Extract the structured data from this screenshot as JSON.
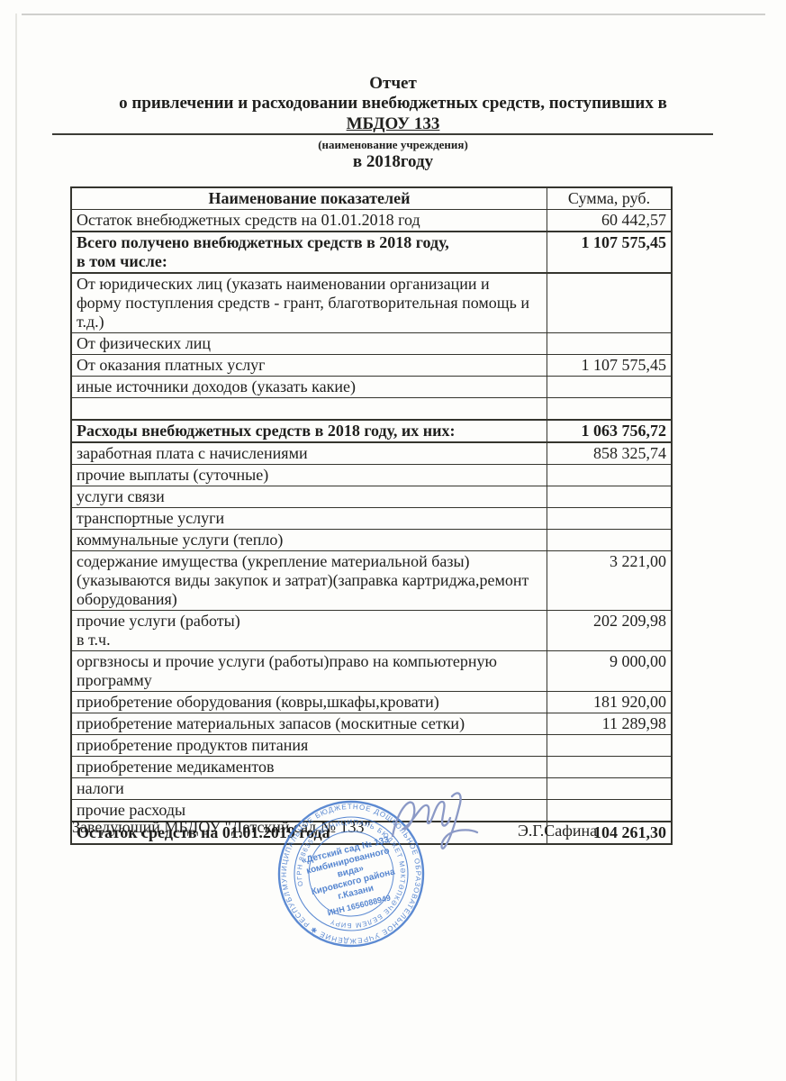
{
  "document": {
    "title_line1": "Отчет",
    "title_line2": "о привлечении и расходовании внебюджетных средств, поступивших в",
    "institution": "МБДОУ 133",
    "institution_caption": "(наименование учреждения)",
    "year_line": "в 2018году"
  },
  "table": {
    "columns": [
      "Наименование показателей",
      "Сумма, руб."
    ],
    "rows": [
      {
        "label": "Остаток внебюджетных средств на 01.01.2018 год",
        "value": "60 442,57"
      },
      {
        "label": "Всего получено внебюджетных средств в 2018 году,\nв том числе:",
        "value": "1 107 575,45",
        "b": true,
        "vb": true
      },
      {
        "label": "От юридических лиц (указать наименовании организации и\nформу поступления средств - грант, благотворительная помощь и т.д.)",
        "value": "",
        "pt": true
      },
      {
        "label": "От физических лиц",
        "value": ""
      },
      {
        "label": "От оказания платных услуг",
        "value": "1 107 575,45"
      },
      {
        "label": "иные источники доходов (указать какие)",
        "value": "",
        "ind": true
      },
      {
        "label": "",
        "value": "",
        "empty": true
      },
      {
        "label": "Расходы внебюджетных средств в 2018 году, их них:",
        "value": "1 063 756,72",
        "b": true
      },
      {
        "label": "заработная плата с начислениями",
        "value": "858 325,74"
      },
      {
        "label": "прочие выплаты (суточные)",
        "value": ""
      },
      {
        "label": "услуги связи",
        "value": ""
      },
      {
        "label": "транспортные услуги",
        "value": ""
      },
      {
        "label": "коммунальные услуги (тепло)",
        "value": ""
      },
      {
        "label": "содержание имущества (укрепление материальной базы)\n(указываются виды закупок и затрат)(заправка картриджа,ремонт\nоборудования)",
        "value": "3 221,00",
        "vb": true
      },
      {
        "label": "прочие услуги (работы)\nв т.ч.",
        "value": "202 209,98",
        "vb": true
      },
      {
        "label": "оргвзносы и прочие услуги (работы)право на компьютерную\nпрограмму",
        "value": "9 000,00",
        "vb": true
      },
      {
        "label": "приобретение оборудования (ковры,шкафы,кровати)",
        "value": "181 920,00"
      },
      {
        "label": "приобретение материальных запасов (москитные сетки)",
        "value": "11 289,98"
      },
      {
        "label": "приобретение продуктов питания",
        "value": ""
      },
      {
        "label": "приобретение медикаментов",
        "value": ""
      },
      {
        "label": "налоги",
        "value": ""
      },
      {
        "label": "прочие расходы",
        "value": ""
      },
      {
        "label": "Остаток средств на 01.01.2019 года",
        "value": "104 261,30",
        "b": true
      }
    ]
  },
  "footer": {
    "signer_title": "Заведующий МБДОУ \"Детский сад № 133\"",
    "signer_name": "Э.Г.Сафина"
  },
  "stamp": {
    "outer_ring": "МУНИЦИПАЛЬНОЕ БЮДЖЕТНОЕ ДОШКОЛЬНОЕ ОБРАЗОВАТЕЛЬНОЕ УЧРЕЖДЕНИЕ ✱ РЕСПУБЛИКА ТАТАРСТАН ✱",
    "inner_ring": "ОГРН 88635 • МУНИЦИПАЛЬ БЮДЖЕТ МӘКТӘПКӘЧЕ БЕЛЕМ БИРҮ",
    "center_lines": [
      "«Детский сад № 133",
      "комбинированного",
      "вида»",
      "Кировского района",
      "г.Казани",
      "ИНН 1656088949"
    ],
    "color": "#4076cb"
  },
  "signature": {
    "color": "#8b99c6"
  }
}
